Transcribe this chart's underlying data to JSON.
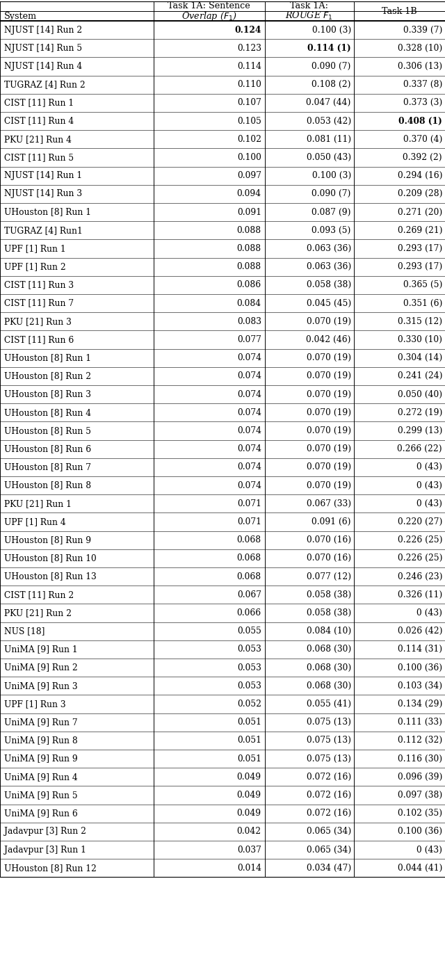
{
  "rows": [
    [
      "NJUST [14] Run 2",
      "bold:0.124",
      "0.100 (3)",
      "0.339 (7)"
    ],
    [
      "NJUST [14] Run 5",
      "0.123",
      "bold:0.114 (1)",
      "0.328 (10)"
    ],
    [
      "NJUST [14] Run 4",
      "0.114",
      "0.090 (7)",
      "0.306 (13)"
    ],
    [
      "TUGRAZ [4] Run 2",
      "0.110",
      "0.108 (2)",
      "0.337 (8)"
    ],
    [
      "CIST [11] Run 1",
      "0.107",
      "0.047 (44)",
      "0.373 (3)"
    ],
    [
      "CIST [11] Run 4",
      "0.105",
      "0.053 (42)",
      "bold:0.408 (1)"
    ],
    [
      "PKU [21] Run 4",
      "0.102",
      "0.081 (11)",
      "0.370 (4)"
    ],
    [
      "CIST [11] Run 5",
      "0.100",
      "0.050 (43)",
      "0.392 (2)"
    ],
    [
      "NJUST [14] Run 1",
      "0.097",
      "0.100 (3)",
      "0.294 (16)"
    ],
    [
      "NJUST [14] Run 3",
      "0.094",
      "0.090 (7)",
      "0.209 (28)"
    ],
    [
      "UHouston [8] Run 1",
      "0.091",
      "0.087 (9)",
      "0.271 (20)"
    ],
    [
      "TUGRAZ [4] Run1",
      "0.088",
      "0.093 (5)",
      "0.269 (21)"
    ],
    [
      "UPF [1] Run 1",
      "0.088",
      "0.063 (36)",
      "0.293 (17)"
    ],
    [
      "UPF [1] Run 2",
      "0.088",
      "0.063 (36)",
      "0.293 (17)"
    ],
    [
      "CIST [11] Run 3",
      "0.086",
      "0.058 (38)",
      "0.365 (5)"
    ],
    [
      "CIST [11] Run 7",
      "0.084",
      "0.045 (45)",
      "0.351 (6)"
    ],
    [
      "PKU [21] Run 3",
      "0.083",
      "0.070 (19)",
      "0.315 (12)"
    ],
    [
      "CIST [11] Run 6",
      "0.077",
      "0.042 (46)",
      "0.330 (10)"
    ],
    [
      "UHouston [8] Run 1",
      "0.074",
      "0.070 (19)",
      "0.304 (14)"
    ],
    [
      "UHouston [8] Run 2",
      "0.074",
      "0.070 (19)",
      "0.241 (24)"
    ],
    [
      "UHouston [8] Run 3",
      "0.074",
      "0.070 (19)",
      "0.050 (40)"
    ],
    [
      "UHouston [8] Run 4",
      "0.074",
      "0.070 (19)",
      "0.272 (19)"
    ],
    [
      "UHouston [8] Run 5",
      "0.074",
      "0.070 (19)",
      "0.299 (13)"
    ],
    [
      "UHouston [8] Run 6",
      "0.074",
      "0.070 (19)",
      "0.266 (22)"
    ],
    [
      "UHouston [8] Run 7",
      "0.074",
      "0.070 (19)",
      "0 (43)"
    ],
    [
      "UHouston [8] Run 8",
      "0.074",
      "0.070 (19)",
      "0 (43)"
    ],
    [
      "PKU [21] Run 1",
      "0.071",
      "0.067 (33)",
      "0 (43)"
    ],
    [
      "UPF [1] Run 4",
      "0.071",
      "0.091 (6)",
      "0.220 (27)"
    ],
    [
      "UHouston [8] Run 9",
      "0.068",
      "0.070 (16)",
      "0.226 (25)"
    ],
    [
      "UHouston [8] Run 10",
      "0.068",
      "0.070 (16)",
      "0.226 (25)"
    ],
    [
      "UHouston [8] Run 13",
      "0.068",
      "0.077 (12)",
      "0.246 (23)"
    ],
    [
      "CIST [11] Run 2",
      "0.067",
      "0.058 (38)",
      "0.326 (11)"
    ],
    [
      "PKU [21] Run 2",
      "0.066",
      "0.058 (38)",
      "0 (43)"
    ],
    [
      "NUS [18]",
      "0.055",
      "0.084 (10)",
      "0.026 (42)"
    ],
    [
      "UniMA [9] Run 1",
      "0.053",
      "0.068 (30)",
      "0.114 (31)"
    ],
    [
      "UniMA [9] Run 2",
      "0.053",
      "0.068 (30)",
      "0.100 (36)"
    ],
    [
      "UniMA [9] Run 3",
      "0.053",
      "0.068 (30)",
      "0.103 (34)"
    ],
    [
      "UPF [1] Run 3",
      "0.052",
      "0.055 (41)",
      "0.134 (29)"
    ],
    [
      "UniMA [9] Run 7",
      "0.051",
      "0.075 (13)",
      "0.111 (33)"
    ],
    [
      "UniMA [9] Run 8",
      "0.051",
      "0.075 (13)",
      "0.112 (32)"
    ],
    [
      "UniMA [9] Run 9",
      "0.051",
      "0.075 (13)",
      "0.116 (30)"
    ],
    [
      "UniMA [9] Run 4",
      "0.049",
      "0.072 (16)",
      "0.096 (39)"
    ],
    [
      "UniMA [9] Run 5",
      "0.049",
      "0.072 (16)",
      "0.097 (38)"
    ],
    [
      "UniMA [9] Run 6",
      "0.049",
      "0.072 (16)",
      "0.102 (35)"
    ],
    [
      "Jadavpur [3] Run 2",
      "0.042",
      "0.065 (34)",
      "0.100 (36)"
    ],
    [
      "Jadavpur [3] Run 1",
      "0.037",
      "0.065 (34)",
      "0 (43)"
    ],
    [
      "UHouston [8] Run 12",
      "0.014",
      "0.034 (47)",
      "0.044 (41)"
    ]
  ],
  "header_line1": [
    "",
    "Task 1A: Sentence",
    "Task 1A:",
    ""
  ],
  "header_line2": [
    "System",
    "Overlap ($F_1$)",
    "ROUGE $F_1$",
    "Task 1B"
  ],
  "col_sep": [
    0.0,
    0.345,
    0.595,
    0.795,
    1.0
  ],
  "background_color": "#ffffff",
  "line_color": "#000000",
  "font_size": 8.8,
  "header_font_size": 9.2
}
